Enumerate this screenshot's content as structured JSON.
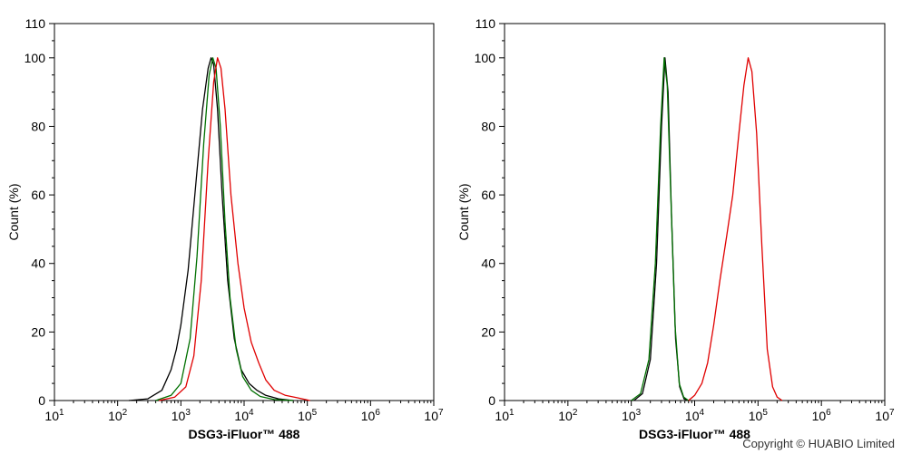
{
  "chart_data": [
    {
      "type": "line",
      "xlabel": "DSG3-iFluor™ 488",
      "ylabel": "Count  (%)",
      "xscale": "log",
      "xlim": [
        10,
        10000000
      ],
      "ylim": [
        0,
        110
      ],
      "xticks": [
        "10^1",
        "10^2",
        "10^3",
        "10^4",
        "10^5",
        "10^6",
        "10^7"
      ],
      "yticks": [
        0,
        20,
        40,
        60,
        80,
        100,
        110
      ],
      "grid": false,
      "series": [
        {
          "color": "#000000",
          "points": [
            [
              150,
              0
            ],
            [
              300,
              0.5
            ],
            [
              500,
              3
            ],
            [
              700,
              9
            ],
            [
              850,
              15
            ],
            [
              1000,
              22
            ],
            [
              1300,
              38
            ],
            [
              1700,
              62
            ],
            [
              2200,
              85
            ],
            [
              2700,
              97
            ],
            [
              3000,
              100
            ],
            [
              3300,
              98
            ],
            [
              3800,
              85
            ],
            [
              4500,
              60
            ],
            [
              5500,
              35
            ],
            [
              7000,
              18
            ],
            [
              9000,
              9
            ],
            [
              12000,
              5
            ],
            [
              16000,
              3
            ],
            [
              22000,
              1.5
            ],
            [
              35000,
              0.5
            ],
            [
              60000,
              0
            ]
          ]
        },
        {
          "color": "#007000",
          "points": [
            [
              400,
              0
            ],
            [
              700,
              1.5
            ],
            [
              1000,
              5
            ],
            [
              1400,
              18
            ],
            [
              1800,
              42
            ],
            [
              2300,
              75
            ],
            [
              2800,
              95
            ],
            [
              3200,
              100
            ],
            [
              3600,
              97
            ],
            [
              4200,
              80
            ],
            [
              5000,
              52
            ],
            [
              6000,
              30
            ],
            [
              7500,
              15
            ],
            [
              9500,
              7
            ],
            [
              13000,
              3
            ],
            [
              18000,
              1.2
            ],
            [
              30000,
              0.3
            ],
            [
              60000,
              0
            ]
          ]
        },
        {
          "color": "#e00000",
          "points": [
            [
              450,
              0
            ],
            [
              800,
              1
            ],
            [
              1200,
              4
            ],
            [
              1600,
              13
            ],
            [
              2100,
              35
            ],
            [
              2700,
              70
            ],
            [
              3300,
              93
            ],
            [
              3800,
              100
            ],
            [
              4300,
              97
            ],
            [
              5000,
              85
            ],
            [
              6200,
              60
            ],
            [
              8000,
              40
            ],
            [
              10000,
              27
            ],
            [
              13000,
              17
            ],
            [
              17000,
              11
            ],
            [
              22000,
              6
            ],
            [
              30000,
              3
            ],
            [
              45000,
              1.5
            ],
            [
              70000,
              0.8
            ],
            [
              110000,
              0
            ]
          ]
        }
      ]
    },
    {
      "type": "line",
      "xlabel": "DSG3-iFluor™ 488",
      "ylabel": "Count  (%)",
      "xscale": "log",
      "xlim": [
        10,
        10000000
      ],
      "ylim": [
        0,
        110
      ],
      "xticks": [
        "10^1",
        "10^2",
        "10^3",
        "10^4",
        "10^5",
        "10^6",
        "10^7"
      ],
      "yticks": [
        0,
        20,
        40,
        60,
        80,
        100,
        110
      ],
      "grid": false,
      "series": [
        {
          "color": "#000000",
          "points": [
            [
              1100,
              0
            ],
            [
              1500,
              2
            ],
            [
              2000,
              12
            ],
            [
              2500,
              40
            ],
            [
              3000,
              80
            ],
            [
              3400,
              100
            ],
            [
              3800,
              90
            ],
            [
              4300,
              55
            ],
            [
              5000,
              18
            ],
            [
              5800,
              4
            ],
            [
              6800,
              0.5
            ],
            [
              8000,
              0
            ]
          ]
        },
        {
          "color": "#007000",
          "points": [
            [
              1000,
              0
            ],
            [
              1400,
              2
            ],
            [
              1900,
              12
            ],
            [
              2400,
              40
            ],
            [
              2900,
              80
            ],
            [
              3300,
              100
            ],
            [
              3700,
              92
            ],
            [
              4200,
              60
            ],
            [
              4900,
              22
            ],
            [
              5700,
              5
            ],
            [
              6700,
              1
            ],
            [
              8000,
              0
            ]
          ]
        },
        {
          "color": "#e00000",
          "points": [
            [
              8000,
              0
            ],
            [
              10000,
              1.5
            ],
            [
              13000,
              5
            ],
            [
              16000,
              11
            ],
            [
              20000,
              22
            ],
            [
              25000,
              35
            ],
            [
              32000,
              48
            ],
            [
              40000,
              60
            ],
            [
              50000,
              78
            ],
            [
              60000,
              92
            ],
            [
              70000,
              100
            ],
            [
              80000,
              96
            ],
            [
              95000,
              78
            ],
            [
              115000,
              45
            ],
            [
              140000,
              15
            ],
            [
              170000,
              4
            ],
            [
              200000,
              1
            ],
            [
              240000,
              0
            ]
          ]
        }
      ]
    }
  ],
  "copyright": "Copyright © HUABIO Limited"
}
